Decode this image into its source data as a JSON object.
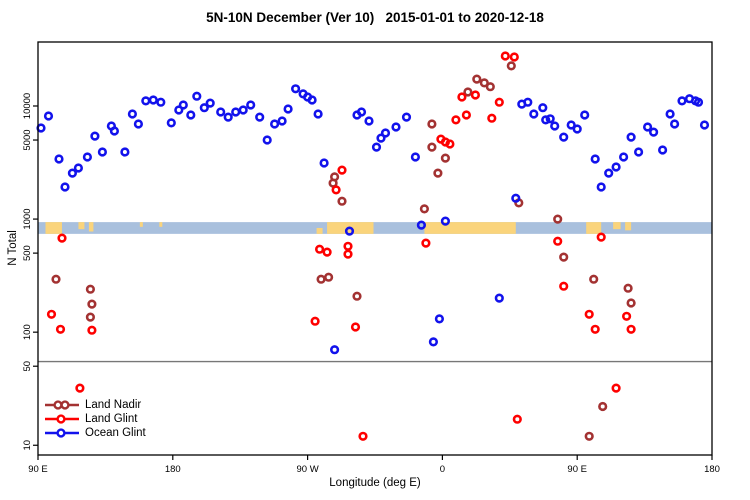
{
  "figure": {
    "title": "5N-10N December (Ver 10)   2015-01-01 to 2020-12-18",
    "xlabel": "Longitude (deg E)",
    "ylabel": "N Total"
  },
  "chart_data": {
    "type": "scatter",
    "title": "5N-10N December (Ver 10)   2015-01-01 to 2020-12-18",
    "xlabel": "Longitude (deg E)",
    "ylabel": "N Total",
    "x_axis": {
      "note": "longitude axis runs 90E eastward a full wrap to 180 (450 deg total), values stored as continuous deg E 90..540",
      "range_deg": [
        90,
        540
      ],
      "ticks": [
        {
          "lon": 90,
          "label": "90 E"
        },
        {
          "lon": 180,
          "label": "180"
        },
        {
          "lon": 270,
          "label": "90 W"
        },
        {
          "lon": 360,
          "label": "0"
        },
        {
          "lon": 450,
          "label": "90 E"
        },
        {
          "lon": 540,
          "label": "180"
        }
      ]
    },
    "y_axis": {
      "scale": "log",
      "range": [
        8.2,
        36800
      ],
      "ticks": [
        {
          "n": 10,
          "label": "10"
        },
        {
          "n": 50,
          "label": "50"
        },
        {
          "n": 100,
          "label": "100"
        },
        {
          "n": 500,
          "label": "500"
        },
        {
          "n": 1000,
          "label": "1000"
        },
        {
          "n": 5000,
          "label": "5000"
        },
        {
          "n": 10000,
          "label": "10000"
        }
      ],
      "grid": false
    },
    "threshold_line_n": 55,
    "threshold_line_color": "#777777",
    "latitude_band": {
      "n_low": 740,
      "n_high": 940,
      "ocean_color": "#A9C0DD",
      "land_color": "#FAD47C",
      "land_patches": [
        {
          "lon0": 95,
          "lon1": 106,
          "frac": 1.0,
          "align": "top"
        },
        {
          "lon0": 117,
          "lon1": 121,
          "frac": 0.6,
          "align": "top"
        },
        {
          "lon0": 124,
          "lon1": 127,
          "frac": 0.8,
          "align": "top"
        },
        {
          "lon0": 158,
          "lon1": 160,
          "frac": 0.4,
          "align": "top"
        },
        {
          "lon0": 171,
          "lon1": 173,
          "frac": 0.4,
          "align": "top"
        },
        {
          "lon0": 276,
          "lon1": 280,
          "frac": 0.5,
          "align": "bottom"
        },
        {
          "lon0": 283,
          "lon1": 314,
          "frac": 1.0,
          "align": "top"
        },
        {
          "lon0": 348,
          "lon1": 409,
          "frac": 1.0,
          "align": "top"
        },
        {
          "lon0": 456,
          "lon1": 466,
          "frac": 1.0,
          "align": "top"
        },
        {
          "lon0": 474,
          "lon1": 479,
          "frac": 0.6,
          "align": "top"
        },
        {
          "lon0": 482,
          "lon1": 486,
          "frac": 0.7,
          "align": "top"
        }
      ]
    },
    "legend": {
      "position": "bottom-left"
    },
    "series": [
      {
        "name": "Land Nadir",
        "color": "#A33232",
        "points": [
          [
            288,
            2360
          ],
          [
            406,
            22600
          ],
          [
            383,
            17300
          ],
          [
            388,
            16000
          ],
          [
            392,
            14800
          ],
          [
            377,
            13300
          ],
          [
            353,
            6930
          ],
          [
            353,
            4330
          ],
          [
            362,
            3460
          ],
          [
            357,
            2550
          ],
          [
            102,
            294
          ],
          [
            125,
            240
          ],
          [
            126,
            177
          ],
          [
            125,
            136
          ],
          [
            287,
            2080
          ],
          [
            293,
            1440
          ],
          [
            279,
            294
          ],
          [
            284,
            306
          ],
          [
            303,
            208
          ],
          [
            348,
            1230
          ],
          [
            411,
            1390
          ],
          [
            437,
            1000
          ],
          [
            441,
            461
          ],
          [
            461,
            294
          ],
          [
            484,
            245
          ],
          [
            486,
            181
          ],
          [
            467,
            22
          ],
          [
            458,
            12
          ]
        ]
      },
      {
        "name": "Land Glint",
        "color": "#FE0000",
        "points": [
          [
            293,
            2710
          ],
          [
            402,
            27700
          ],
          [
            408,
            27100
          ],
          [
            373,
            12000
          ],
          [
            382,
            12500
          ],
          [
            398,
            10800
          ],
          [
            369,
            7530
          ],
          [
            376,
            8330
          ],
          [
            393,
            7800
          ],
          [
            359,
            5100
          ],
          [
            362,
            4800
          ],
          [
            365,
            4610
          ],
          [
            106,
            679
          ],
          [
            99,
            144
          ],
          [
            105,
            106
          ],
          [
            126,
            104
          ],
          [
            289,
            1810
          ],
          [
            278,
            542
          ],
          [
            283,
            510
          ],
          [
            297,
            575
          ],
          [
            297,
            490
          ],
          [
            275,
            125
          ],
          [
            349,
            613
          ],
          [
            437,
            638
          ],
          [
            466,
            693
          ],
          [
            441,
            255
          ],
          [
            458,
            144
          ],
          [
            462,
            106
          ],
          [
            483,
            138
          ],
          [
            486,
            106
          ],
          [
            118,
            32
          ],
          [
            302,
            111
          ],
          [
            307,
            12
          ],
          [
            410,
            17
          ],
          [
            476,
            32
          ]
        ]
      },
      {
        "name": "Ocean Glint",
        "color": "#1212EC",
        "points": [
          [
            97,
            8160
          ],
          [
            92,
            6390
          ],
          [
            104,
            3400
          ],
          [
            113,
            2550
          ],
          [
            117,
            2830
          ],
          [
            123,
            3540
          ],
          [
            128,
            5420
          ],
          [
            133,
            3920
          ],
          [
            139,
            6650
          ],
          [
            141,
            6010
          ],
          [
            148,
            3920
          ],
          [
            153,
            8500
          ],
          [
            157,
            6930
          ],
          [
            162,
            11100
          ],
          [
            167,
            11300
          ],
          [
            172,
            10800
          ],
          [
            179,
            7090
          ],
          [
            184,
            9220
          ],
          [
            187,
            10200
          ],
          [
            192,
            8330
          ],
          [
            196,
            12200
          ],
          [
            201,
            9650
          ],
          [
            205,
            10600
          ],
          [
            212,
            8850
          ],
          [
            217,
            7970
          ],
          [
            222,
            8850
          ],
          [
            227,
            9220
          ],
          [
            232,
            10200
          ],
          [
            238,
            7970
          ],
          [
            243,
            5000
          ],
          [
            248,
            6930
          ],
          [
            253,
            7360
          ],
          [
            257,
            9410
          ],
          [
            262,
            14200
          ],
          [
            267,
            12800
          ],
          [
            270,
            12000
          ],
          [
            273,
            11300
          ],
          [
            277,
            8500
          ],
          [
            281,
            3130
          ],
          [
            303,
            8330
          ],
          [
            306,
            8850
          ],
          [
            311,
            7360
          ],
          [
            316,
            4330
          ],
          [
            319,
            5200
          ],
          [
            322,
            5770
          ],
          [
            329,
            6520
          ],
          [
            336,
            7970
          ],
          [
            342,
            3540
          ],
          [
            413,
            10400
          ],
          [
            417,
            10800
          ],
          [
            421,
            8500
          ],
          [
            427,
            9650
          ],
          [
            429,
            7530
          ],
          [
            432,
            7700
          ],
          [
            435,
            6650
          ],
          [
            441,
            5310
          ],
          [
            446,
            6790
          ],
          [
            450,
            6260
          ],
          [
            455,
            8330
          ],
          [
            462,
            3400
          ],
          [
            471,
            2550
          ],
          [
            476,
            2890
          ],
          [
            481,
            3540
          ],
          [
            486,
            5310
          ],
          [
            491,
            3920
          ],
          [
            497,
            6520
          ],
          [
            501,
            5880
          ],
          [
            507,
            4080
          ],
          [
            512,
            8500
          ],
          [
            515,
            6930
          ],
          [
            520,
            11100
          ],
          [
            525,
            11600
          ],
          [
            529,
            11100
          ],
          [
            531,
            10800
          ],
          [
            535,
            6790
          ],
          [
            108,
            1920
          ],
          [
            298,
            783
          ],
          [
            362,
            960
          ],
          [
            346,
            885
          ],
          [
            409,
            1530
          ],
          [
            398,
            200
          ],
          [
            358,
            131
          ],
          [
            354,
            82
          ],
          [
            466,
            1920
          ],
          [
            288,
            70
          ]
        ]
      }
    ]
  }
}
